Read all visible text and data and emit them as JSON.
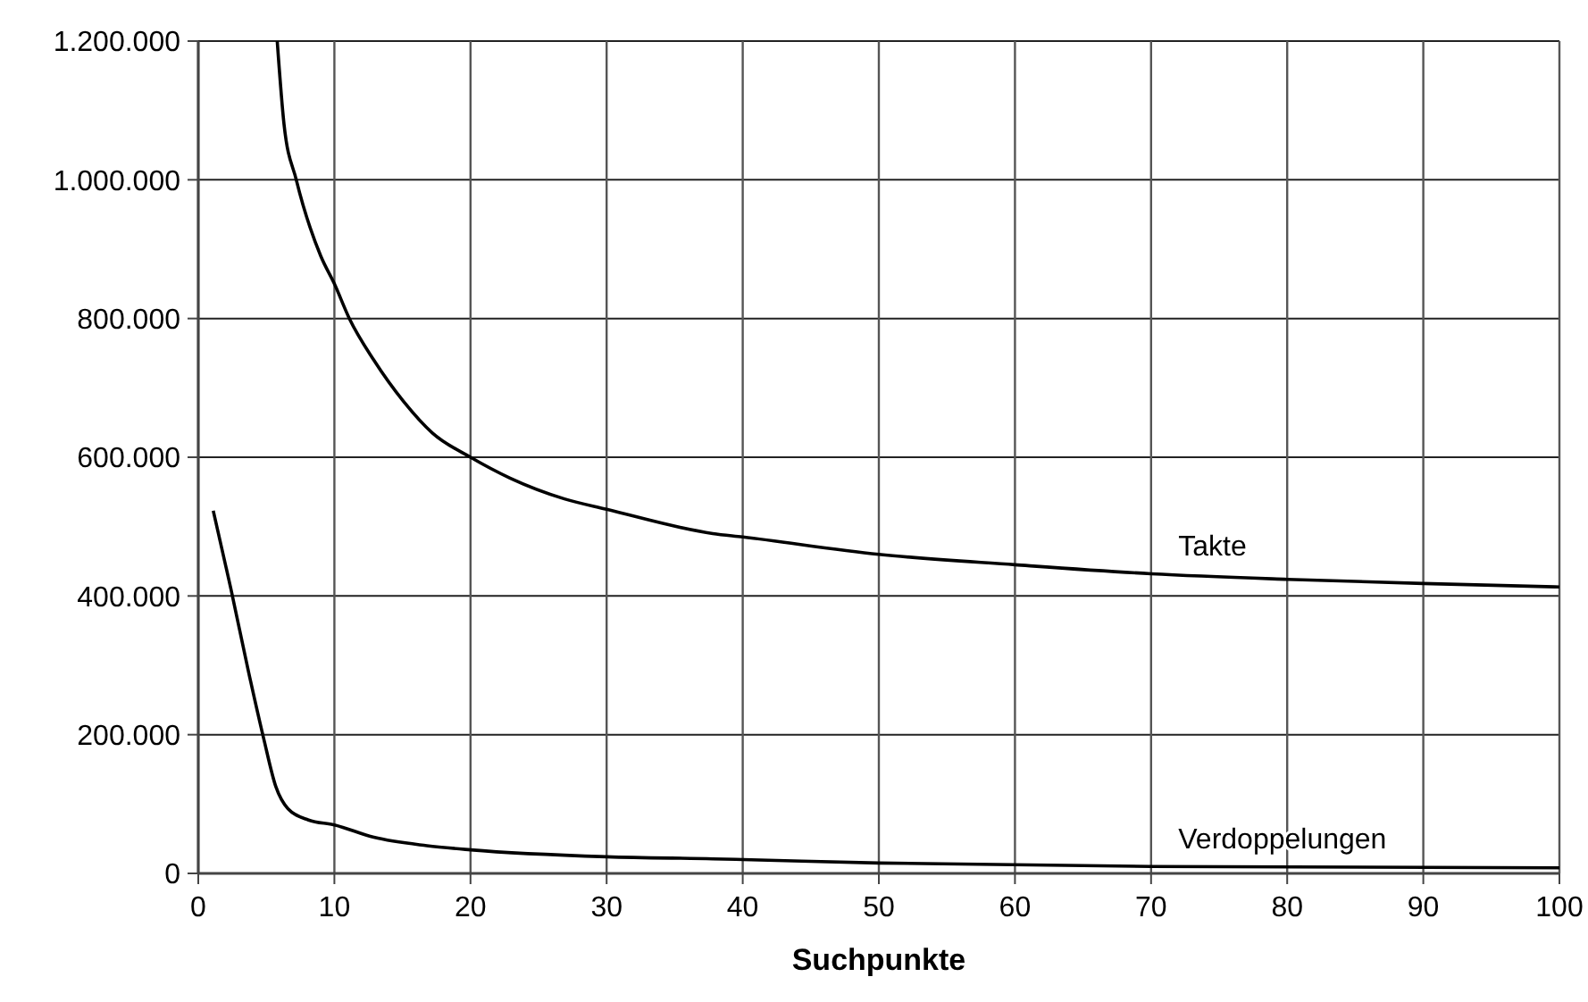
{
  "chart_data": {
    "type": "line",
    "xlabel": "Suchpunkte",
    "xlim": [
      0,
      100
    ],
    "xticks": [
      0,
      10,
      20,
      30,
      40,
      50,
      60,
      70,
      80,
      90,
      100
    ],
    "ylim": [
      0,
      1200000
    ],
    "yticks": [
      {
        "value": 0,
        "label": "0"
      },
      {
        "value": 200000,
        "label": "200.000"
      },
      {
        "value": 400000,
        "label": "400.000"
      },
      {
        "value": 600000,
        "label": "600.000"
      },
      {
        "value": 800000,
        "label": "800.000"
      },
      {
        "value": 1000000,
        "label": "1.000.000"
      },
      {
        "value": 1200000,
        "label": "1.200.000"
      }
    ],
    "grid": true,
    "marker": "none",
    "line_style": "solid",
    "series": [
      {
        "name": "Takte",
        "color": "#000000",
        "x": [
          5.8,
          6.3,
          7.2,
          9,
          10,
          11.1,
          12.9,
          15.1,
          17.2,
          20,
          22.9,
          26.9,
          30,
          37.8,
          40,
          50,
          60,
          70,
          80,
          90,
          100
        ],
        "values": [
          1200000,
          1080000,
          1000000,
          890000,
          850000,
          800000,
          740000,
          680000,
          635000,
          600000,
          570000,
          540000,
          525000,
          490000,
          485000,
          460000,
          445000,
          432000,
          424000,
          418000,
          413000
        ]
      },
      {
        "name": "Verdoppelungen",
        "color": "#000000",
        "x": [
          1.1,
          2.4,
          3.7,
          4.8,
          5.7,
          6.6,
          8.1,
          10,
          12.9,
          16.8,
          20,
          30,
          37.8,
          40,
          50,
          70,
          100
        ],
        "values": [
          523000,
          410000,
          290000,
          195000,
          125000,
          93000,
          77000,
          70000,
          52000,
          40000,
          34000,
          24000,
          21000,
          20000,
          15000,
          10000,
          8000
        ]
      }
    ]
  }
}
